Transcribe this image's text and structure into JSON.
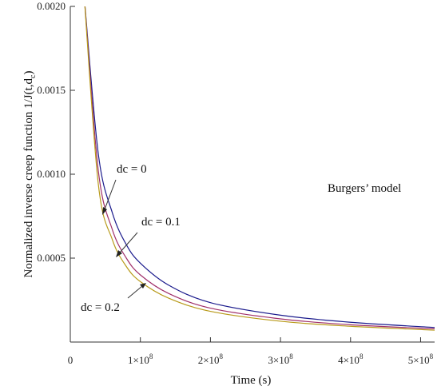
{
  "chart_data": {
    "type": "line",
    "xlabel": "Time (s)",
    "ylabel": "Normalized inverse creep function 1/J(t,d",
    "ylabel_subscript": "c",
    "ylabel_close": ")",
    "xlim": [
      0,
      520000000
    ],
    "ylim": [
      0,
      0.002
    ],
    "x_ticks": [
      {
        "value": 0,
        "label": "0",
        "mantissa": "",
        "exponent": ""
      },
      {
        "value": 100000000,
        "label": "",
        "mantissa": "1×10",
        "exponent": "8"
      },
      {
        "value": 200000000,
        "label": "",
        "mantissa": "2×10",
        "exponent": "8"
      },
      {
        "value": 300000000,
        "label": "",
        "mantissa": "3×10",
        "exponent": "8"
      },
      {
        "value": 400000000,
        "label": "",
        "mantissa": "4×10",
        "exponent": "8"
      },
      {
        "value": 500000000,
        "label": "",
        "mantissa": "5×10",
        "exponent": "8"
      }
    ],
    "y_ticks": [
      {
        "value": 0.0005,
        "label": "0.0005"
      },
      {
        "value": 0.001,
        "label": "0.0010"
      },
      {
        "value": 0.0015,
        "label": "0.0015"
      },
      {
        "value": 0.002,
        "label": "0.0020"
      }
    ],
    "series": [
      {
        "label": "dc = 0",
        "color": "#1a1a8c",
        "x": [
          20000000,
          40000000,
          60000000,
          80000000,
          100000000,
          140000000,
          200000000,
          300000000,
          400000000,
          520000000
        ],
        "y": [
          0.00205,
          0.00112,
          0.00077,
          0.00058,
          0.00047,
          0.00034,
          0.000235,
          0.00016,
          0.000118,
          8.7e-05
        ]
      },
      {
        "label": "dc = 0.1",
        "color": "#a0306a",
        "x": [
          20000000,
          40000000,
          60000000,
          80000000,
          100000000,
          140000000,
          200000000,
          300000000,
          400000000,
          520000000
        ],
        "y": [
          0.00205,
          0.00102,
          0.00067,
          0.0005,
          0.0004,
          0.00029,
          0.000202,
          0.000138,
          0.000103,
          7.9e-05
        ]
      },
      {
        "label": "dc = 0.2",
        "color": "#b89a1a",
        "x": [
          20000000,
          40000000,
          60000000,
          80000000,
          100000000,
          140000000,
          200000000,
          300000000,
          400000000,
          520000000
        ],
        "y": [
          0.00205,
          0.00094,
          0.00061,
          0.00045,
          0.00036,
          0.000262,
          0.000183,
          0.000124,
          9.4e-05,
          7.1e-05
        ]
      }
    ],
    "annotations": {
      "dc0": "dc = 0",
      "dc01": "dc = 0.1",
      "dc02": "dc = 0.2",
      "model": "Burgers’ model"
    },
    "grid": false,
    "legend": "none"
  }
}
